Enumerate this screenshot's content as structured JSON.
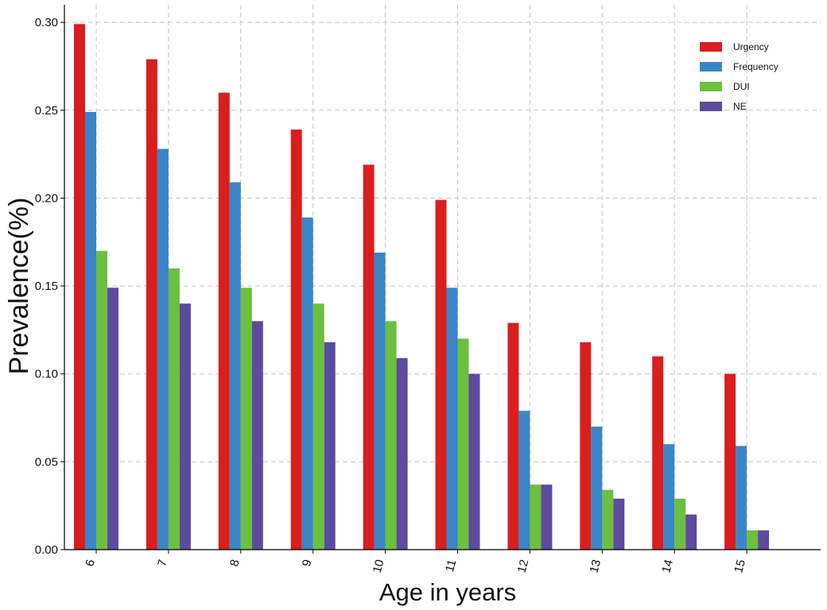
{
  "chart_data": {
    "type": "bar",
    "title": "",
    "xlabel": "Age in years",
    "ylabel": "Prevalence(%)",
    "ylim": [
      0,
      0.31
    ],
    "yticks": [
      "0.00",
      "0.05",
      "0.10",
      "0.15",
      "0.20",
      "0.25",
      "0.30"
    ],
    "ytick_values": [
      0,
      0.05,
      0.1,
      0.15,
      0.2,
      0.25,
      0.3
    ],
    "grid": true,
    "legend_position": "top-right",
    "categories": [
      "6",
      "7",
      "8",
      "9",
      "10",
      "11",
      "12",
      "13",
      "14",
      "15"
    ],
    "series": [
      {
        "name": "Urgency",
        "color": "#d91e1e",
        "values": [
          0.299,
          0.279,
          0.26,
          0.239,
          0.219,
          0.199,
          0.129,
          0.118,
          0.11,
          0.1
        ]
      },
      {
        "name": "Frequency",
        "color": "#3a85c8",
        "values": [
          0.249,
          0.228,
          0.209,
          0.189,
          0.169,
          0.149,
          0.079,
          0.07,
          0.06,
          0.059
        ]
      },
      {
        "name": "DUI",
        "color": "#6cbf3f",
        "values": [
          0.17,
          0.16,
          0.149,
          0.14,
          0.13,
          0.12,
          0.037,
          0.034,
          0.029,
          0.011
        ]
      },
      {
        "name": "NE",
        "color": "#5c4b9e",
        "values": [
          0.149,
          0.14,
          0.13,
          0.118,
          0.109,
          0.1,
          0.037,
          0.029,
          0.02,
          0.011
        ]
      }
    ]
  }
}
